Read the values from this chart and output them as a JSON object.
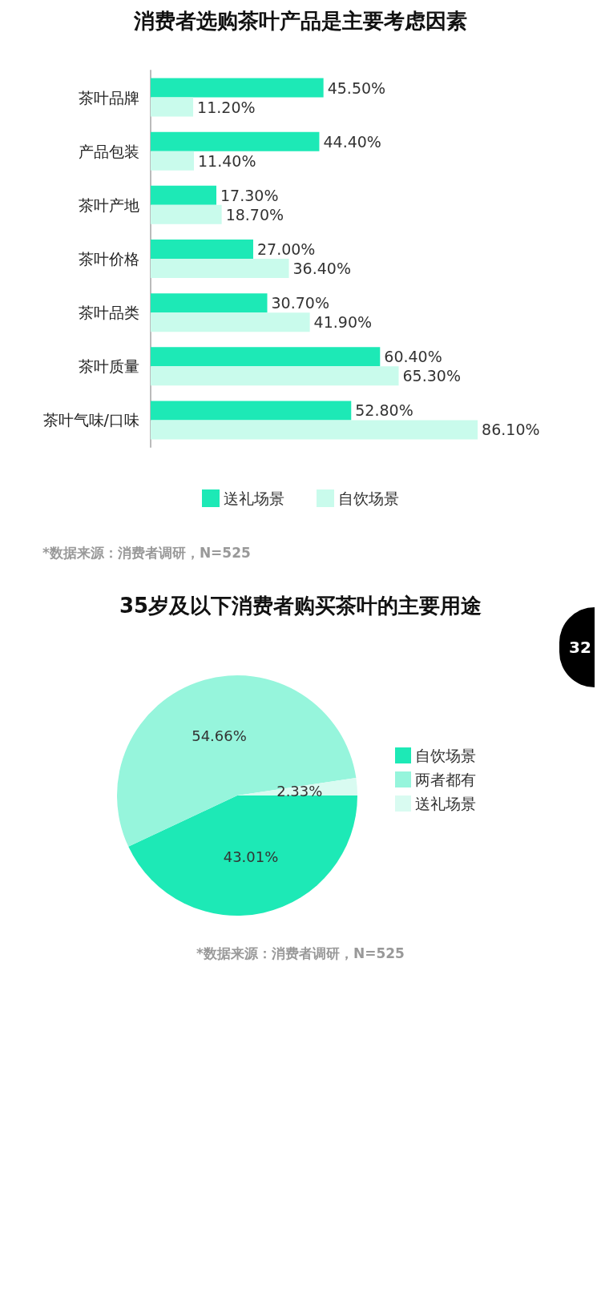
{
  "chart_data": [
    {
      "type": "bar",
      "orientation": "horizontal",
      "title": "消费者选购茶叶产品是主要考虑因素",
      "categories": [
        "茶叶品牌",
        "产品包装",
        "茶叶产地",
        "茶叶价格",
        "茶叶品类",
        "茶叶质量",
        "茶叶气味/口味"
      ],
      "series": [
        {
          "name": "送礼场景",
          "color": "#1de9b6",
          "values": [
            45.5,
            44.4,
            17.3,
            27.0,
            30.7,
            60.4,
            52.8
          ],
          "value_labels": [
            "45.50%",
            "44.40%",
            "17.30%",
            "27.00%",
            "30.70%",
            "60.40%",
            "52.80%"
          ]
        },
        {
          "name": "自饮场景",
          "color": "#c9fbec",
          "values": [
            11.2,
            11.4,
            18.7,
            36.4,
            41.9,
            65.3,
            86.1
          ],
          "value_labels": [
            "11.20%",
            "11.40%",
            "18.70%",
            "36.40%",
            "41.90%",
            "65.30%",
            "86.10%"
          ]
        }
      ],
      "legend": "bottom",
      "grid": false,
      "annotations": [
        "*数据来源：消费者调研，N=525"
      ]
    },
    {
      "type": "pie",
      "title": "35岁及以下消费者购买茶叶的主要用途",
      "categories": [
        "自饮场景",
        "两者都有",
        "送礼场景"
      ],
      "values": [
        43.01,
        54.66,
        2.33
      ],
      "value_labels": [
        "43.01%",
        "54.66%",
        "2.33%"
      ],
      "colors": [
        "#1de9b6",
        "#96f5dc",
        "#d9fbf1"
      ],
      "legend": "right",
      "annotations": [
        "*数据来源：消费者调研，N=525",
        "32"
      ]
    }
  ]
}
